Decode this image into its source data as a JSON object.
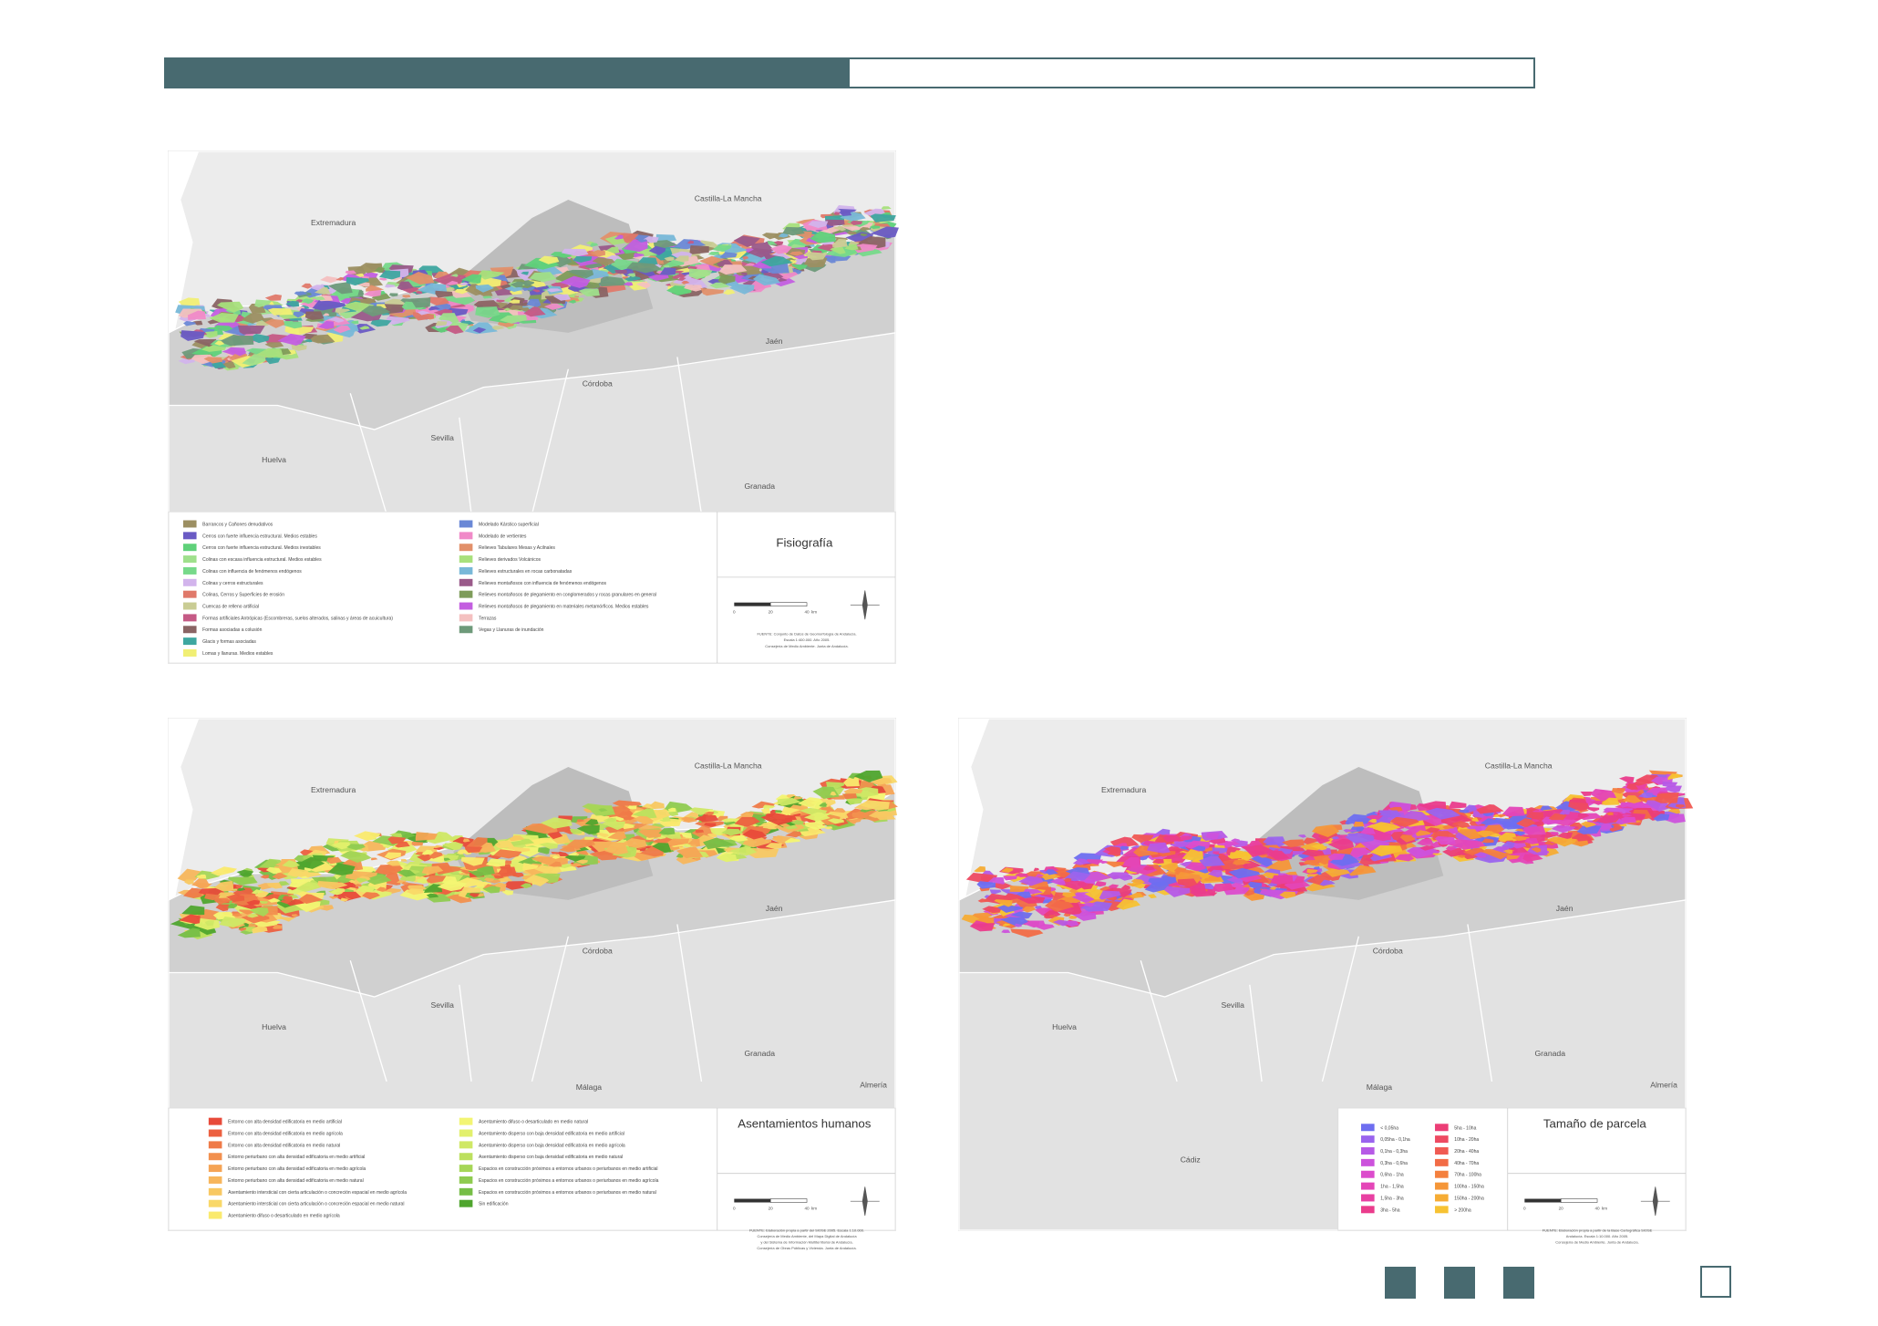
{
  "maps": [
    {
      "title": "Fisiografía",
      "places": [
        "Extremadura",
        "Castilla-La Mancha",
        "Jaén",
        "Córdoba",
        "Sevilla",
        "Huelva",
        "Granada"
      ],
      "legend": [
        {
          "label": "Barrancos y Cañones denudativos",
          "color": "#9c8f62"
        },
        {
          "label": "Cerros con fuerte influencia estructural. Medios estables",
          "color": "#6a5bc4"
        },
        {
          "label": "Cerros con fuerte influencia estructural. Medios inestables",
          "color": "#5fd17a"
        },
        {
          "label": "Colinas con escasa influencia estructural. Medios estables",
          "color": "#9fe08c"
        },
        {
          "label": "Colinas con influencia de fenómenos endógenos",
          "color": "#77d98a"
        },
        {
          "label": "Colinas y cerros estructurales",
          "color": "#d2b4ec"
        },
        {
          "label": "Colinas, Cerros y Superficies de erosión",
          "color": "#e0796a"
        },
        {
          "label": "Cuencas de relleno artificial",
          "color": "#c9cc94"
        },
        {
          "label": "Formas artificiales Antrópicas (Escombreras, suelos alterados, salinas y áreas de acuicultura)",
          "color": "#c55a85"
        },
        {
          "label": "Formas asociadas a colusión",
          "color": "#8a6464"
        },
        {
          "label": "Glacis y formas asociadas",
          "color": "#3ea7a0"
        },
        {
          "label": "Lomas y llanuras. Medios estables",
          "color": "#f1ef74"
        },
        {
          "label": "Modelado Kárstico superficial",
          "color": "#6a88d6"
        },
        {
          "label": "Modelado de vertientes",
          "color": "#f08ac8"
        },
        {
          "label": "Relieves Tabulares Mesas y Acilnales",
          "color": "#e2906a"
        },
        {
          "label": "Relieves derivados Volcánicos",
          "color": "#a8e07c"
        },
        {
          "label": "Relieves estructurales en rocas carbonatadas",
          "color": "#78b8d8"
        },
        {
          "label": "Relieves montañosos con influencia de fenómenos endógenos",
          "color": "#9a5a8a"
        },
        {
          "label": "Relieves montañosos de plegamiento en conglomerados y rocas granulares en general",
          "color": "#7e9c5a"
        },
        {
          "label": "Relieves montañosos de plegamiento en materiales metamórficos. Medios estables",
          "color": "#c35ee0"
        },
        {
          "label": "Terrazas",
          "color": "#f4c0c0"
        },
        {
          "label": "Vegas y Llanuras de inundación",
          "color": "#6e9a7a"
        }
      ],
      "scale": [
        "0",
        "20",
        "40",
        "km"
      ],
      "source": [
        "FUENTE: Conjunto de Datos de Geomorfología de Andalucía.",
        "Escala 1:400.000. Año 2005.",
        "Consejería de Medio Ambiente. Junta de Andalucía."
      ]
    },
    {
      "title": "Asentamientos humanos",
      "places": [
        "Extremadura",
        "Castilla-La Mancha",
        "Jaén",
        "Córdoba",
        "Sevilla",
        "Huelva",
        "Granada",
        "Málaga",
        "Almería"
      ],
      "legend": [
        {
          "label": "Entorno con alta densidad edificatoria en medio artificial",
          "color": "#e84a3a"
        },
        {
          "label": "Entorno con alta densidad edificatoria en medio agrícola",
          "color": "#ec6040"
        },
        {
          "label": "Entorno con alta densidad edificatoria en medio natural",
          "color": "#ef7a48"
        },
        {
          "label": "Entorno periurbano con alta densidad edificatoria en medio artificial",
          "color": "#f2904e"
        },
        {
          "label": "Entorno periurbano con alta densidad edificatoria en medio agrícola",
          "color": "#f5a455"
        },
        {
          "label": "Entorno periurbano con alta densidad edificatoria en medio natural",
          "color": "#f7b65c"
        },
        {
          "label": "Asentamiento intersticial con cierta articulación o concreción espacial en medio agrícola",
          "color": "#f8c862"
        },
        {
          "label": "Asentamiento intersticial con cierta articulación o concreción espacial en medio natural",
          "color": "#f9d868"
        },
        {
          "label": "Asentamiento difuso o desarticulado en medio agrícola",
          "color": "#faea6e"
        },
        {
          "label": "Asentamiento difuso o desarticulado en medio natural",
          "color": "#f3f573"
        },
        {
          "label": "Asentamiento disperso con baja densidad edificatoria en medio artificial",
          "color": "#e2f06c"
        },
        {
          "label": "Asentamiento disperso con baja densidad edificatoria en medio agrícola",
          "color": "#cfe865"
        },
        {
          "label": "Asentamiento disperso con baja densidad edificatoria en medio natural",
          "color": "#bce05e"
        },
        {
          "label": "Espacios en construcción próximos a entornos urbanos o periurbanos en medio artificial",
          "color": "#a6d657"
        },
        {
          "label": "Espacios en construcción próximos a entornos urbanos o periurbanos en medio agrícola",
          "color": "#8fcb50"
        },
        {
          "label": "Espacios en construcción próximos a entornos urbanos o periurbanos en medio natural",
          "color": "#76be46"
        },
        {
          "label": "Sin edificación",
          "color": "#4fa52e"
        }
      ],
      "scale": [
        "0",
        "20",
        "40",
        "km"
      ],
      "source": [
        "FUENTE: Elaboración propia a partir del SIOSE 2005. Escala 1:10.000.",
        "Consejería de Medio Ambiente, del Mapa Digital de Andalucía",
        "y del Sistema de Información Multiterritorial de Andalucía.",
        "Consejería de Obras Públicas y Vivienda. Junta de Andalucía."
      ]
    },
    {
      "title": "Tamaño de parcela",
      "places": [
        "Extremadura",
        "Castilla-La Mancha",
        "Jaén",
        "Córdoba",
        "Sevilla",
        "Huelva",
        "Granada",
        "Málaga",
        "Almería",
        "Cádiz"
      ],
      "legend": [
        {
          "label": "< 0,05ha",
          "color": "#6e6ef0"
        },
        {
          "label": "0,05ha - 0,1ha",
          "color": "#9a64ee"
        },
        {
          "label": "0,1ha - 0,3ha",
          "color": "#b65ae6"
        },
        {
          "label": "0,3ha - 0,6ha",
          "color": "#cc52dc"
        },
        {
          "label": "0,6ha - 1ha",
          "color": "#dc4ccc"
        },
        {
          "label": "1ha - 1,5ha",
          "color": "#e446b8"
        },
        {
          "label": "1,5ha - 3ha",
          "color": "#e840a2"
        },
        {
          "label": "3ha - 5ha",
          "color": "#ea3c8c"
        },
        {
          "label": "5ha - 10ha",
          "color": "#ec3e76"
        },
        {
          "label": "10ha - 20ha",
          "color": "#ee4a62"
        },
        {
          "label": "20ha - 40ha",
          "color": "#f05a52"
        },
        {
          "label": "40ha - 70ha",
          "color": "#f26c46"
        },
        {
          "label": "70ha - 100ha",
          "color": "#f4803e"
        },
        {
          "label": "100ha - 150ha",
          "color": "#f59638"
        },
        {
          "label": "150ha - 200ha",
          "color": "#f6ac34"
        },
        {
          "label": "> 200ha",
          "color": "#f7c232"
        }
      ],
      "scale": [
        "0",
        "20",
        "40",
        "km"
      ],
      "source": [
        "FUENTE: Elaboración propia a partir de la Base Cartográfica SIOSE",
        "Andalucía. Escala 1:10.000. Año 2005.",
        "Consejería de Medio Ambiente. Junta de Andalucía."
      ]
    }
  ]
}
